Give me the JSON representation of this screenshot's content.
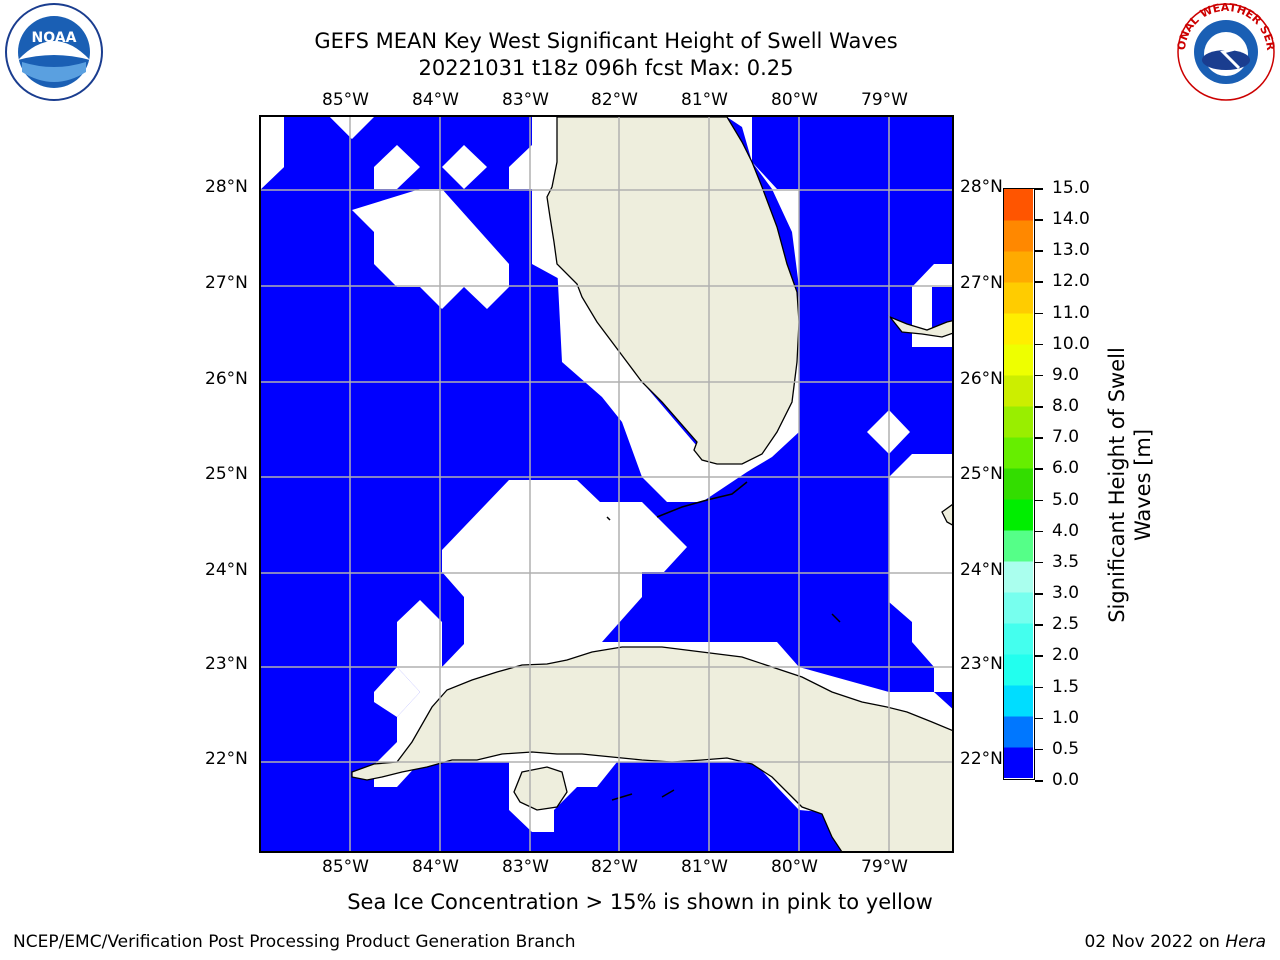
{
  "title_line1": "GEFS MEAN Key West Significant Height of Swell Waves",
  "title_line2": "20221031 t18z 096h fcst   Max: 0.25",
  "map": {
    "lon_labels": [
      "85°W",
      "84°W",
      "83°W",
      "82°W",
      "81°W",
      "80°W",
      "79°W"
    ],
    "lat_labels": [
      "28°N",
      "27°N",
      "26°N",
      "25°N",
      "24°N",
      "23°N",
      "22°N"
    ],
    "colors": {
      "ocean": "#0000ff",
      "land": "#eeeedd",
      "nodata": "#ffffff",
      "grid": "#b0b0b0"
    }
  },
  "colorbar": {
    "title_line1": "Significant Height of Swell",
    "title_line2": "Waves [m]",
    "labels": [
      "0.0",
      "0.5",
      "1.0",
      "1.5",
      "2.0",
      "2.5",
      "3.0",
      "3.5",
      "4.0",
      "5.0",
      "6.0",
      "7.0",
      "8.0",
      "9.0",
      "10.0",
      "11.0",
      "12.0",
      "13.0",
      "14.0",
      "15.0"
    ],
    "colors": [
      "#0000ff",
      "#0077ff",
      "#00ddff",
      "#22ffee",
      "#44ffee",
      "#77ffee",
      "#aaffee",
      "#55ff88",
      "#00ee00",
      "#33dd00",
      "#66ee00",
      "#99ee00",
      "#ccee00",
      "#eeff00",
      "#ffee00",
      "#ffcc00",
      "#ffaa00",
      "#ff8800",
      "#ff5500",
      "#ff2200",
      "#ff0000"
    ]
  },
  "note": "Sea Ice Concentration > 15% is shown in pink to yellow",
  "footer": {
    "left": "NCEP/EMC/Verification Post Processing Product Generation Branch",
    "right_prefix": "02 Nov 2022 on ",
    "right_host": "Hera"
  },
  "logos": {
    "noaa_text": "NOAA",
    "nws_text": "NATIONAL WEATHER SERVICE"
  }
}
